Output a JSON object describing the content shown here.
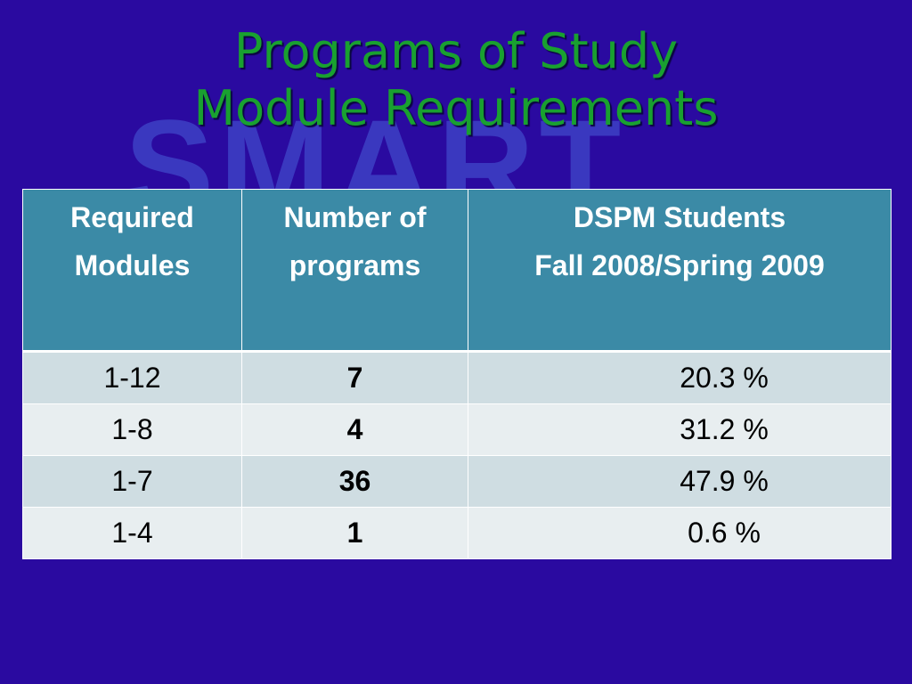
{
  "watermark": "SMART",
  "title": {
    "line1": "Programs of Study",
    "line2": "Module Requirements"
  },
  "table": {
    "headers": [
      {
        "line1": "Required",
        "line2": "Modules"
      },
      {
        "line1": "Number of",
        "line2": "programs"
      },
      {
        "line1": "DSPM Students",
        "line2": "Fall 2008/Spring 2009"
      }
    ],
    "rows": [
      {
        "modules": "1-12",
        "programs": "7",
        "percent": "20.3 %"
      },
      {
        "modules": "1-8",
        "programs": "4",
        "percent": "31.2 %"
      },
      {
        "modules": "1-7",
        "programs": "36",
        "percent": "47.9 %"
      },
      {
        "modules": "1-4",
        "programs": "1",
        "percent": "0.6 %"
      }
    ]
  },
  "colors": {
    "background": "#2a0aa0",
    "title": "#19a030",
    "header": "#3b8aa6",
    "row_odd": "#cfdde2",
    "row_even": "#e8eef0"
  }
}
